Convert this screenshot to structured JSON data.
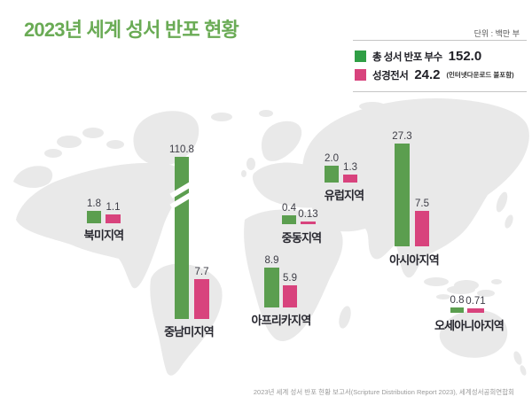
{
  "title": "2023년 세계 성서 반포 현황",
  "unit_label": "단위 : 백만 부",
  "legend": {
    "total": {
      "label": "총 성서 반포 부수",
      "value": "152.0"
    },
    "full_bible": {
      "label": "성경전서",
      "value": "24.2",
      "note": "(인터넷다운로드 불포함)"
    }
  },
  "source": "2023년 세계 성서 반포 현황 보고서(Scripture Distribution Report 2023), 세계성서공회연합회",
  "colors": {
    "title_green": "#6aab55",
    "bar_green": "#5b9e4f",
    "legend_green": "#2f9e45",
    "pink": "#d8437d",
    "map_gray": "#e9e9e9"
  },
  "chart_data": {
    "type": "bar",
    "title": "2023년 세계 성서 반포 현황",
    "unit": "백만 부",
    "legend_position": "top-right",
    "axis_break": {
      "region": "중남미지역",
      "series": "총 성서 반포 부수"
    },
    "categories": [
      "북미지역",
      "중남미지역",
      "유럽지역",
      "중동지역",
      "아프리카지역",
      "아시아지역",
      "오세아니아지역"
    ],
    "series": [
      {
        "name": "총 성서 반포 부수",
        "overall_total": 152.0,
        "color": "#5b9e4f",
        "values": [
          1.8,
          110.8,
          2.0,
          0.4,
          8.9,
          27.3,
          0.8
        ]
      },
      {
        "name": "성경전서",
        "overall_total": 24.2,
        "color": "#d8437d",
        "values": [
          1.1,
          7.7,
          1.3,
          0.13,
          5.9,
          7.5,
          0.71
        ]
      }
    ],
    "regions": [
      {
        "key": "north-america",
        "name": "북미지역",
        "total_label": "1.8",
        "full_label": "1.1"
      },
      {
        "key": "latin-america",
        "name": "중남미지역",
        "total_label": "110.8",
        "full_label": "7.7"
      },
      {
        "key": "europe",
        "name": "유럽지역",
        "total_label": "2.0",
        "full_label": "1.3"
      },
      {
        "key": "middle-east",
        "name": "중동지역",
        "total_label": "0.4",
        "full_label": "0.13"
      },
      {
        "key": "africa",
        "name": "아프리카지역",
        "total_label": "8.9",
        "full_label": "5.9"
      },
      {
        "key": "asia",
        "name": "아시아지역",
        "total_label": "27.3",
        "full_label": "7.5"
      },
      {
        "key": "oceania",
        "name": "오세아니아지역",
        "total_label": "0.8",
        "full_label": "0.71"
      }
    ]
  }
}
